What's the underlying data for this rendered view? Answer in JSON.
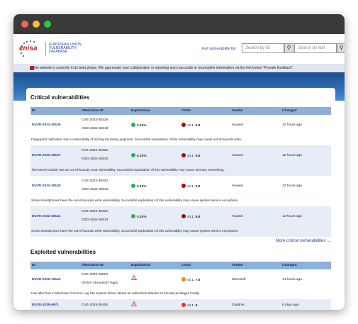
{
  "header": {
    "logo_text": "enisa",
    "logo_lines": [
      "EUROPEAN UNION",
      "VULNERABILITY",
      "DATABASE"
    ],
    "full_list_link": "Full vulnerability list",
    "search_id_placeholder": "Search by ID",
    "search_text_placeholder": "Search by text"
  },
  "beta_notice": "This website is currently in its beta phase. We appreciate your collaboration in reporting any inaccurate or incomplete information via the link below \"Provide feedback\".",
  "columns": [
    "ID",
    "Alternative ID",
    "Exploitation",
    "CVSS",
    "Vendor",
    "Changed"
  ],
  "critical": {
    "title": "Critical vulnerabilities",
    "more_link": "More critical vulnerabilities →",
    "rows": [
      {
        "id": "EUVD-2022-49136",
        "alt1": "CVE-2022-48319",
        "alt2": "GSD-2022-48319",
        "exploitation": "0.10%",
        "cvss_prefix": "v3.1:",
        "cvss_score": "9.8",
        "vendor": "Huawei",
        "changed": "12 hours ago",
        "desc": "Fingerprint calibration has a vulnerability of lacking boundary judgment. Successful exploitation of this vulnerability may cause out-of-bounds write."
      },
      {
        "id": "EUVD-2022-49137",
        "alt1": "CVE-2022-48320",
        "alt2": "GSD-2022-48320",
        "exploitation": "0.10%",
        "cvss_prefix": "v3.1:",
        "cvss_score": "9.8",
        "vendor": "Huawei",
        "changed": "12 hours ago",
        "desc": "The kernel module has an out-of-bounds read vulnerability. Successful exploitation of this vulnerability may cause memory overwriting."
      },
      {
        "id": "EUVD-2022-49140",
        "alt1": "CVE-2022-48323",
        "alt2": "GSD-2022-48323",
        "exploitation": "0.10%",
        "cvss_prefix": "v3.1:",
        "cvss_score": "9.8",
        "vendor": "Huawei",
        "changed": "12 hours ago",
        "desc": "Some smartphones have the out-of-bounds write vulnerability. Successful exploitation of this vulnerability may cause system service exceptions."
      },
      {
        "id": "EUVD-2022-49141",
        "alt1": "CVE-2022-48324",
        "alt2": "GSD-2022-48324",
        "exploitation": "0.10%",
        "cvss_prefix": "v3.1:",
        "cvss_score": "9.8",
        "vendor": "Huawei",
        "changed": "12 hours ago",
        "desc": "Some smartphones have the out-of-bounds write vulnerability. Successful exploitation of this vulnerability may cause system service exceptions."
      }
    ]
  },
  "exploited": {
    "title": "Exploited vulnerabilities",
    "rows": [
      {
        "id": "EUVD-2025-10122",
        "alt1": "CVE-2025-29824",
        "alt2": "GHSA-74mq-6c57-hqpx",
        "cvss_prefix": "v3.1:",
        "cvss_score": "7.8",
        "vendor": "Microsoft",
        "changed": "14 hours ago",
        "desc": "Use after free in Windows Common Log File System Driver allows an authorized attacker to elevate privileges locally."
      },
      {
        "id": "EUVD-2025-9671",
        "alt1": "CVE-2025-30406",
        "alt2": "",
        "cvss_prefix": "v3.1:",
        "cvss_score": "9",
        "vendor": "Gladinet",
        "changed": "8 days ago",
        "desc": ""
      }
    ]
  },
  "colors": {
    "accent": "#1f3f8f",
    "header_row": "#8eb0d8",
    "alt_row": "#e6edf7"
  }
}
